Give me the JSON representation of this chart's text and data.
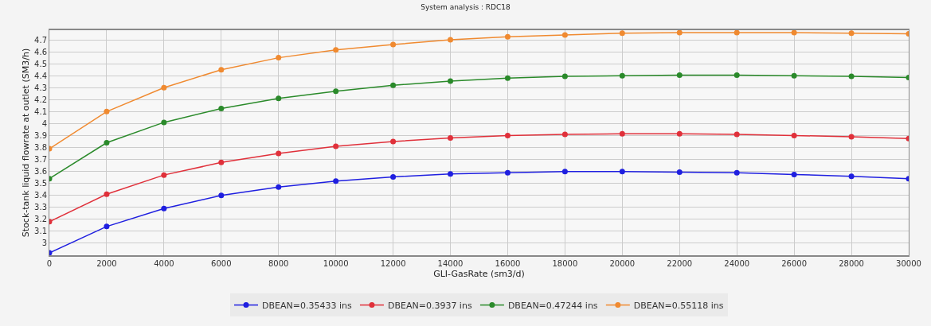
{
  "chart_data": {
    "type": "line",
    "title": "System analysis : RDC18",
    "xlabel": "GLI-GasRate (sm3/d)",
    "ylabel": "Stock-tank liquid flowrate at outlet (SM3/h)",
    "x": [
      0,
      2000,
      4000,
      6000,
      8000,
      10000,
      12000,
      14000,
      16000,
      18000,
      20000,
      22000,
      24000,
      26000,
      28000,
      30000
    ],
    "series": [
      {
        "name": "DBEAN=0.35433 ins",
        "color": "#1f1fe0",
        "values": [
          2.92,
          3.14,
          3.29,
          3.4,
          3.47,
          3.52,
          3.555,
          3.58,
          3.59,
          3.6,
          3.6,
          3.595,
          3.59,
          3.575,
          3.56,
          3.54
        ]
      },
      {
        "name": "DBEAN=0.3937 ins",
        "color": "#e0303a",
        "values": [
          3.18,
          3.41,
          3.57,
          3.675,
          3.75,
          3.81,
          3.85,
          3.88,
          3.9,
          3.91,
          3.915,
          3.915,
          3.91,
          3.9,
          3.89,
          3.875
        ]
      },
      {
        "name": "DBEAN=0.47244 ins",
        "color": "#2a8a2a",
        "values": [
          3.54,
          3.84,
          4.01,
          4.125,
          4.21,
          4.27,
          4.32,
          4.355,
          4.38,
          4.395,
          4.4,
          4.405,
          4.405,
          4.4,
          4.395,
          4.385
        ]
      },
      {
        "name": "DBEAN=0.55118 ins",
        "color": "#f08a30",
        "values": [
          3.79,
          4.1,
          4.3,
          4.45,
          4.55,
          4.615,
          4.66,
          4.7,
          4.725,
          4.74,
          4.755,
          4.76,
          4.76,
          4.76,
          4.755,
          4.75
        ]
      }
    ],
    "xlim": [
      0,
      30000
    ],
    "xticks": [
      0,
      2000,
      4000,
      6000,
      8000,
      10000,
      12000,
      14000,
      16000,
      18000,
      20000,
      22000,
      24000,
      26000,
      28000,
      30000
    ],
    "ylim": [
      2.9,
      4.78
    ],
    "yticks": [
      3,
      3.1,
      3.2,
      3.3,
      3.4,
      3.5,
      3.6,
      3.7,
      3.8,
      3.9,
      4,
      4.1,
      4.2,
      4.3,
      4.4,
      4.5,
      4.6,
      4.7
    ],
    "grid": true,
    "legend": "bottom",
    "marker": "circle",
    "line_style": "solid"
  }
}
